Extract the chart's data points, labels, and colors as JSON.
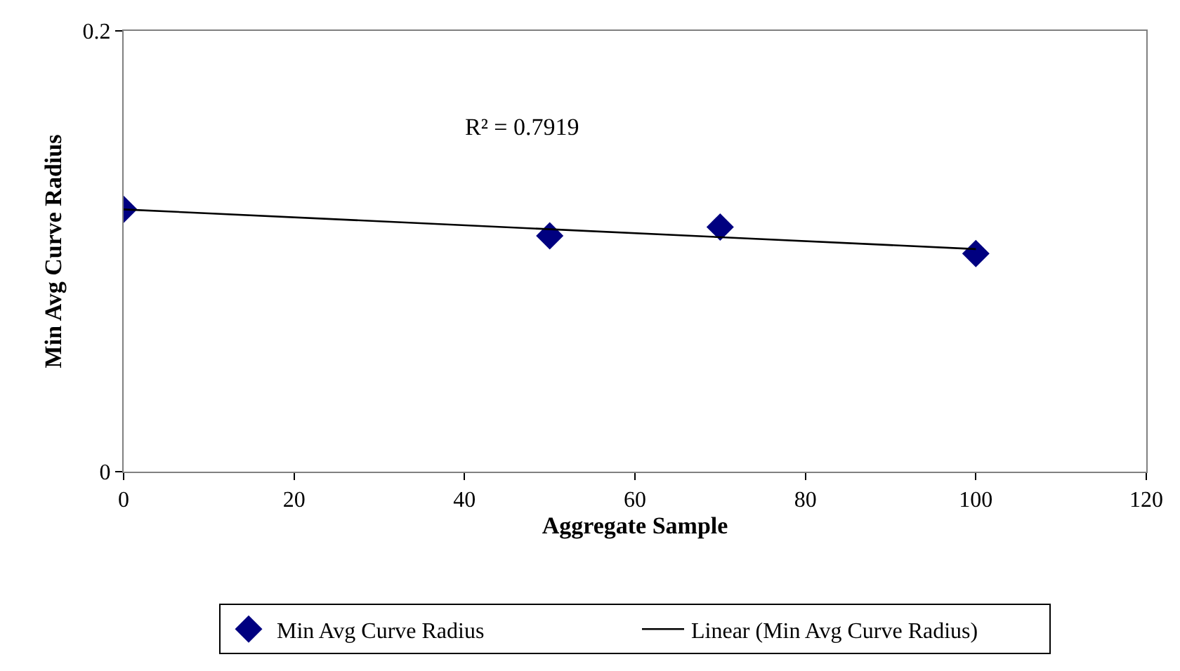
{
  "chart_data": {
    "type": "scatter",
    "xlabel": "Aggregate Sample",
    "ylabel": "Min Avg Curve Radius",
    "x": [
      0,
      50,
      70,
      100
    ],
    "series": [
      {
        "name": "Min Avg Curve Radius",
        "color": "#000080",
        "values": [
          0.119,
          0.107,
          0.111,
          0.099
        ],
        "marker": "diamond"
      },
      {
        "name": "Linear (Min Avg Curve Radius)",
        "type": "line",
        "color": "#000000",
        "x": [
          0,
          100
        ],
        "values": [
          0.119,
          0.101
        ],
        "marker": "none",
        "line_style": "solid"
      }
    ],
    "annotations": [
      "R² = 0.7919"
    ],
    "xlim": [
      0,
      120
    ],
    "xticks": [
      0,
      20,
      40,
      60,
      80,
      100,
      120
    ],
    "ylim": [
      0,
      0.2
    ],
    "yticks": [
      0,
      0.2
    ],
    "legend": "bottom"
  }
}
